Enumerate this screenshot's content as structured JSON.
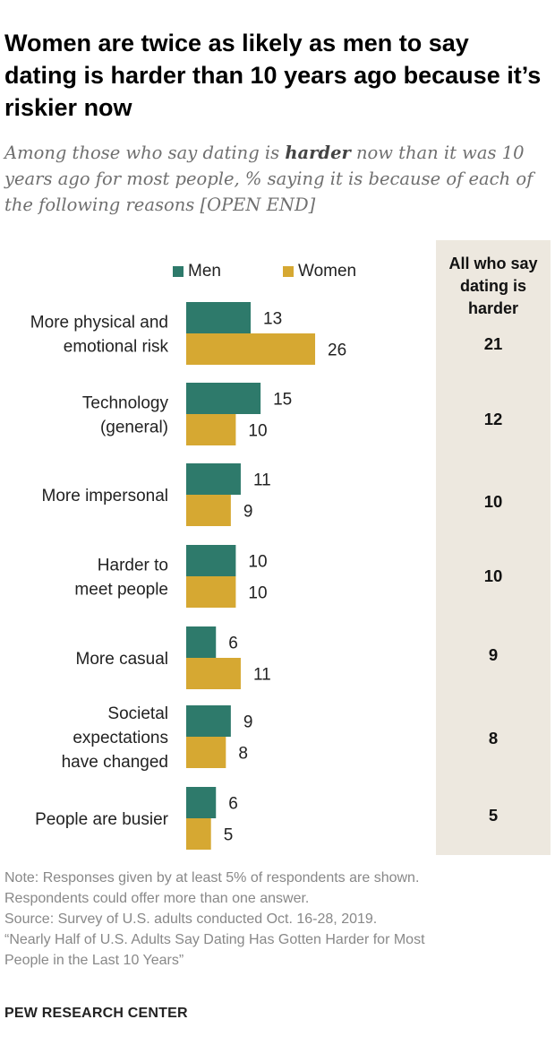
{
  "title": "Women are twice as likely as men to say dating is harder than 10 years ago because it’s riskier now",
  "subtitle": {
    "before": "Among those who say dating is ",
    "emphasis": "harder",
    "after": " now than it was 10 years ago for most people, % saying it is because of each of the following reasons [OPEN END]"
  },
  "legend": {
    "men": "Men",
    "women": "Women"
  },
  "all_header": "All who say dating is harder",
  "colors": {
    "men": "#2e7a6b",
    "women": "#d6a832",
    "panel": "#ede8df"
  },
  "chart_data": {
    "type": "bar",
    "orientation": "horizontal",
    "categories": [
      [
        "More physical and",
        "emotional risk"
      ],
      [
        "Technology",
        "(general)"
      ],
      [
        "More impersonal"
      ],
      [
        "Harder to",
        "meet people"
      ],
      [
        "More casual"
      ],
      [
        "Societal",
        "expectations",
        "have changed"
      ],
      [
        "People are busier"
      ]
    ],
    "series": [
      {
        "name": "Men",
        "values": [
          13,
          15,
          11,
          10,
          6,
          9,
          6
        ]
      },
      {
        "name": "Women",
        "values": [
          26,
          10,
          9,
          10,
          11,
          8,
          5
        ]
      }
    ],
    "all": [
      21,
      12,
      10,
      10,
      9,
      8,
      5
    ],
    "unit": "%"
  },
  "notes": [
    "Note: Responses given by at least 5% of respondents are shown.",
    "Respondents could offer more than one answer.",
    "Source: Survey of U.S. adults conducted Oct. 16-28, 2019.",
    "“Nearly Half of U.S. Adults Say Dating Has Gotten Harder for Most",
    "People in the Last 10 Years”"
  ],
  "brand": "PEW RESEARCH CENTER"
}
